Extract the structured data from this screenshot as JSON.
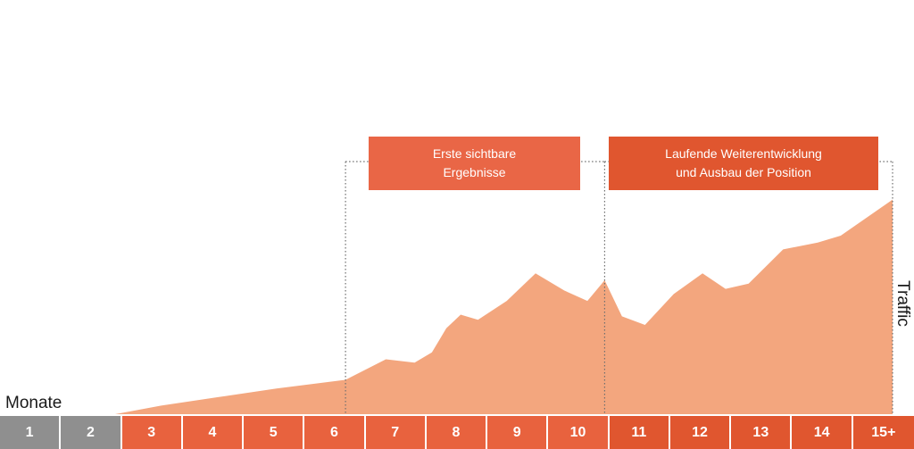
{
  "axis": {
    "months_label": "Monate",
    "traffic_label": "Traffic"
  },
  "phases": {
    "first": {
      "line1": "Erste sichtbare",
      "line2": "Ergebnisse"
    },
    "second": {
      "line1": "Laufende Weiterentwicklung",
      "line2": "und Ausbau der Position"
    }
  },
  "months": [
    "1",
    "2",
    "3",
    "4",
    "5",
    "6",
    "7",
    "8",
    "9",
    "10",
    "11",
    "12",
    "13",
    "14",
    "15+"
  ],
  "colors": {
    "area": "#f3a67e",
    "phase_first": "#e96646",
    "phase_second": "#e0562f",
    "month_gray": "#8f8f8f",
    "month_orange": "#e8623e",
    "guide_line": "#6e6e6e"
  },
  "chart_data": {
    "type": "area",
    "x": [
      2.0,
      2.8,
      3.8,
      4.8,
      6.0,
      6.7,
      7.2,
      7.5,
      7.75,
      8.0,
      8.3,
      8.8,
      9.3,
      9.8,
      10.2,
      10.5,
      10.8,
      11.2,
      11.7,
      12.2,
      12.6,
      13.0,
      13.6,
      14.2,
      14.6,
      15.5
    ],
    "y": [
      0,
      5,
      10,
      15,
      20,
      32,
      30,
      36,
      50,
      58,
      55,
      66,
      82,
      72,
      66,
      78,
      57,
      52,
      70,
      82,
      73,
      76,
      96,
      100,
      104,
      125
    ],
    "xlim": [
      0,
      15.5
    ],
    "ylim": [
      0,
      130
    ],
    "phase_markers": [
      6,
      10.5,
      15.5
    ],
    "grid": false,
    "legend": "none"
  }
}
